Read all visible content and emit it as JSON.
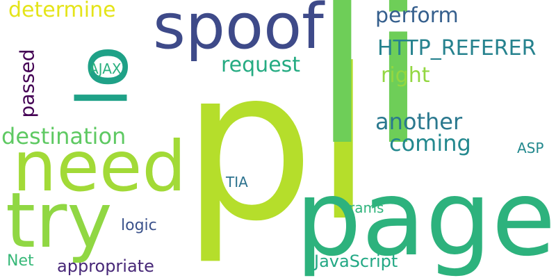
{
  "words": [
    {
      "text": "pl",
      "color": "#b5de2b"
    },
    {
      "text": "li",
      "color": "#6ece58"
    },
    {
      "text": "page",
      "color": "#2db27d"
    },
    {
      "text": "spoof",
      "color": "#3e4a89"
    },
    {
      "text": "need",
      "color": "#a2da37"
    },
    {
      "text": "try",
      "color": "#90d743"
    },
    {
      "text": "lo",
      "color": "#1fa187"
    },
    {
      "text": "determine",
      "color": "#e4e419"
    },
    {
      "text": "perform",
      "color": "#355f8d"
    },
    {
      "text": "HTTP_REFERER",
      "color": "#26828e"
    },
    {
      "text": "request",
      "color": "#25ab82"
    },
    {
      "text": "right",
      "color": "#93d741"
    },
    {
      "text": "passed",
      "color": "#440154"
    },
    {
      "text": "AJAX",
      "color": "#2ab07f"
    },
    {
      "text": "destination",
      "color": "#5ec962"
    },
    {
      "text": "another",
      "color": "#2a788e"
    },
    {
      "text": "coming",
      "color": "#23888e"
    },
    {
      "text": "ASP",
      "color": "#23898e"
    },
    {
      "text": "TIA",
      "color": "#2c728e"
    },
    {
      "text": "rams",
      "color": "#2fb47c"
    },
    {
      "text": "logic",
      "color": "#3b528b"
    },
    {
      "text": "Net",
      "color": "#37b878"
    },
    {
      "text": "appropriate",
      "color": "#482878"
    },
    {
      "text": "JavaScript",
      "color": "#22a884"
    }
  ]
}
